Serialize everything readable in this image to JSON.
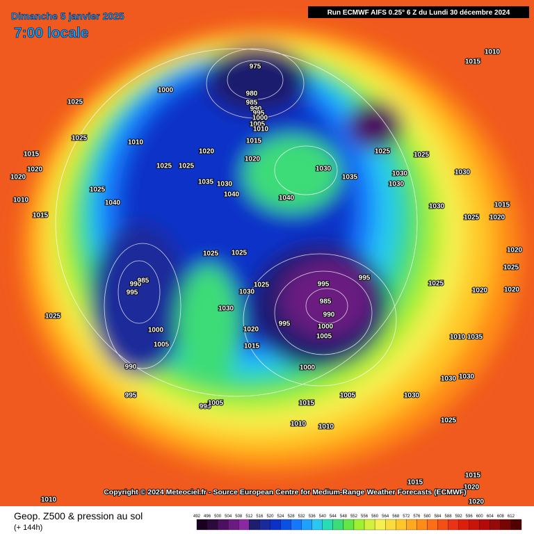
{
  "header": {
    "date": "Dimanche 5 janvier 2025",
    "time": "7:00 locale",
    "run": "Run ECMWF AIFS 0.25° 6 Z du Lundi 30 décembre 2024"
  },
  "copyright": "Copyright © 2024 Meteociel.fr - Source European Centre for Medium-Range Weather Forecasts (ECMWF)",
  "footer": {
    "field": "Geop. Z500 & pression au sol",
    "lead": "(+ 144h)"
  },
  "colorbar": {
    "levels": [
      492,
      496,
      500,
      504,
      508,
      512,
      516,
      520,
      524,
      528,
      532,
      536,
      540,
      544,
      548,
      552,
      556,
      560,
      564,
      568,
      572,
      576,
      580,
      584,
      588,
      592,
      596,
      600,
      604,
      608,
      612
    ],
    "colors": [
      "#1a0020",
      "#2d0a3c",
      "#4b1060",
      "#6a1a80",
      "#8a2aa0",
      "#1e1e6e",
      "#1a2a9a",
      "#0a32c8",
      "#0a50e6",
      "#1478ff",
      "#1ea0ff",
      "#28c8f0",
      "#28dcb4",
      "#3cdc78",
      "#64e646",
      "#a0f032",
      "#d2f03c",
      "#f5f050",
      "#fadc3c",
      "#ffc828",
      "#ffaa1e",
      "#ff8c14",
      "#ff6e14",
      "#f55014",
      "#eb3214",
      "#dc1e0a",
      "#c8140a",
      "#b40a0a",
      "#960a0a",
      "#780505",
      "#500000"
    ]
  },
  "isobar_labels": [
    975,
    980,
    985,
    990,
    995,
    1000,
    1005,
    1010,
    1015,
    1020,
    1000,
    1025,
    1025,
    1010,
    1015,
    1020,
    1020,
    1010,
    1015,
    1040,
    1025,
    1025,
    1025,
    1020,
    1035,
    1030,
    1040,
    1040,
    1030,
    1035,
    1025,
    1030,
    1030,
    1025,
    1030,
    1015,
    1010,
    1025,
    1025,
    1030,
    1025,
    990,
    985,
    995,
    1000,
    1005,
    990,
    995,
    1025,
    995,
    985,
    990,
    995,
    1000,
    1005,
    995,
    1020,
    1015,
    1030,
    1000,
    1005,
    1015,
    1010,
    1010,
    995,
    1005,
    1030,
    1030,
    1030,
    1025,
    1015,
    1015,
    1020,
    1020,
    1010,
    1020,
    1025,
    1020,
    1030,
    1025,
    1020,
    1015,
    1010,
    1035,
    1020,
    1025
  ]
}
